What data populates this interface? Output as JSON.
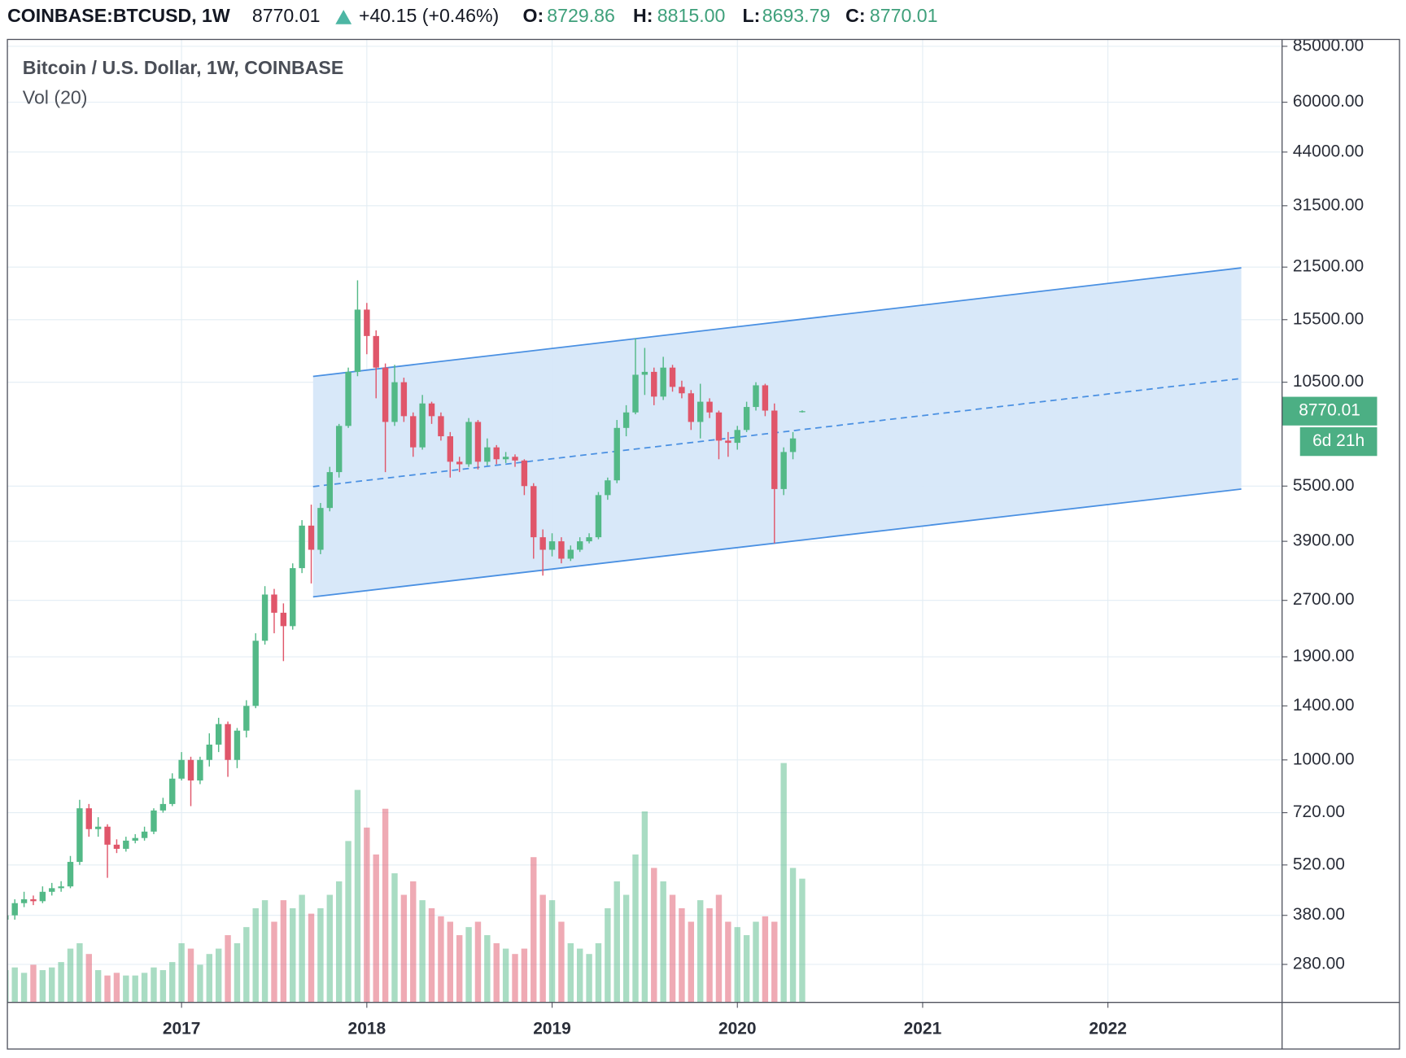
{
  "header": {
    "symbol": "COINBASE:BTCUSD, 1W",
    "price": "8770.01",
    "change": "+40.15 (+0.46%)",
    "ohlc": [
      {
        "label": "O:",
        "value": "8729.86"
      },
      {
        "label": "H:",
        "value": "8815.00"
      },
      {
        "label": "L:",
        "value": "8693.79"
      },
      {
        "label": "C:",
        "value": "8770.01"
      }
    ]
  },
  "chart_data": {
    "type": "candlestick",
    "title": "Bitcoin / U.S. Dollar, 1W, COINBASE",
    "subtitle": "Vol (20)",
    "log_scale": true,
    "grid": true,
    "up_color": "#53b987",
    "down_color": "#e0566a",
    "x": [
      2016.05,
      2016.1,
      2016.15,
      2016.2,
      2016.25,
      2016.3,
      2016.35,
      2016.4,
      2016.45,
      2016.5,
      2016.55,
      2016.6,
      2016.65,
      2016.7,
      2016.75,
      2016.8,
      2016.85,
      2016.9,
      2016.95,
      2017.0,
      2017.05,
      2017.1,
      2017.15,
      2017.2,
      2017.25,
      2017.3,
      2017.35,
      2017.4,
      2017.45,
      2017.5,
      2017.55,
      2017.6,
      2017.65,
      2017.7,
      2017.75,
      2017.8,
      2017.85,
      2017.9,
      2017.95,
      2018.0,
      2018.05,
      2018.1,
      2018.15,
      2018.2,
      2018.25,
      2018.3,
      2018.35,
      2018.4,
      2018.45,
      2018.5,
      2018.55,
      2018.6,
      2018.65,
      2018.7,
      2018.75,
      2018.8,
      2018.85,
      2018.9,
      2018.95,
      2019.0,
      2019.05,
      2019.1,
      2019.15,
      2019.2,
      2019.25,
      2019.3,
      2019.35,
      2019.4,
      2019.45,
      2019.5,
      2019.55,
      2019.6,
      2019.65,
      2019.7,
      2019.75,
      2019.8,
      2019.85,
      2019.9,
      2019.95,
      2020.0,
      2020.05,
      2020.1,
      2020.15,
      2020.2,
      2020.25,
      2020.3,
      2020.35
    ],
    "open": [
      370,
      380,
      410,
      420,
      415,
      440,
      450,
      455,
      530,
      740,
      650,
      660,
      590,
      575,
      605,
      615,
      640,
      730,
      760,
      890,
      1000,
      880,
      1000,
      1100,
      1250,
      1000,
      1200,
      1400,
      2100,
      2800,
      2500,
      2300,
      3300,
      4300,
      3700,
      4800,
      6000,
      8000,
      11200,
      16500,
      14000,
      11500,
      8200,
      10500,
      8500,
      7000,
      9200,
      8500,
      7500,
      6400,
      6300,
      8200,
      6400,
      7000,
      6500,
      6600,
      6450,
      5500,
      4000,
      3700,
      3900,
      3500,
      3700,
      3900,
      4000,
      5200,
      5700,
      7900,
      8700,
      11000,
      11200,
      9600,
      11500,
      10200,
      9800,
      8200,
      9300,
      8700,
      7300,
      7200,
      7800,
      9000,
      10300,
      8800,
      5400,
      6800,
      8729.86
    ],
    "high": [
      400,
      420,
      440,
      430,
      455,
      465,
      470,
      550,
      780,
      760,
      700,
      670,
      610,
      620,
      630,
      660,
      740,
      790,
      920,
      1050,
      1020,
      1020,
      1180,
      1300,
      1270,
      1220,
      1450,
      2200,
      2950,
      2900,
      2650,
      3400,
      4450,
      4900,
      4950,
      6200,
      8100,
      11500,
      19800,
      17200,
      14500,
      11800,
      11700,
      10800,
      8700,
      9700,
      9300,
      8700,
      7700,
      6600,
      8400,
      8300,
      7400,
      7100,
      6800,
      6700,
      6500,
      5600,
      4200,
      4100,
      4000,
      3800,
      4000,
      4100,
      5300,
      5800,
      8300,
      9100,
      13800,
      13000,
      11500,
      12300,
      11700,
      10600,
      10000,
      10400,
      9500,
      8800,
      7700,
      8000,
      9300,
      10500,
      10400,
      9200,
      7000,
      7700,
      8815.0
    ],
    "low": [
      360,
      370,
      400,
      405,
      410,
      430,
      440,
      450,
      520,
      620,
      620,
      480,
      560,
      565,
      595,
      605,
      630,
      720,
      750,
      880,
      750,
      860,
      960,
      1050,
      900,
      950,
      1150,
      1380,
      2050,
      2200,
      1850,
      2250,
      3200,
      3000,
      3600,
      4700,
      5800,
      7900,
      10900,
      12500,
      9500,
      6000,
      8000,
      8200,
      6600,
      6900,
      8100,
      7300,
      5800,
      6000,
      6200,
      6100,
      6250,
      6300,
      6350,
      6200,
      5200,
      3500,
      3150,
      3550,
      3400,
      3450,
      3650,
      3850,
      3950,
      5050,
      5600,
      7500,
      8600,
      9700,
      9100,
      9400,
      9900,
      9500,
      7800,
      7400,
      8400,
      6500,
      6600,
      6900,
      7700,
      8800,
      8500,
      3850,
      5200,
      6500,
      8693.79
    ],
    "close": [
      380,
      410,
      420,
      415,
      440,
      450,
      455,
      530,
      740,
      650,
      660,
      590,
      575,
      605,
      615,
      640,
      730,
      760,
      890,
      1000,
      880,
      1000,
      1100,
      1250,
      1000,
      1200,
      1400,
      2100,
      2800,
      2500,
      2300,
      3300,
      4300,
      3700,
      4800,
      6000,
      8000,
      11200,
      16500,
      14000,
      11500,
      8200,
      10500,
      8500,
      7000,
      9200,
      8500,
      7500,
      6400,
      6300,
      8200,
      6400,
      7000,
      6500,
      6600,
      6450,
      5500,
      4000,
      3700,
      3900,
      3500,
      3700,
      3900,
      4000,
      5200,
      5700,
      7900,
      8700,
      11000,
      11200,
      9600,
      11500,
      10200,
      9800,
      8200,
      9300,
      8700,
      7300,
      7200,
      7800,
      9000,
      10300,
      8800,
      5400,
      6800,
      7400,
      8770.01
    ],
    "volume": [
      12,
      13,
      11,
      14,
      12,
      13,
      15,
      20,
      22,
      18,
      12,
      10,
      11,
      10,
      10,
      11,
      13,
      12,
      15,
      22,
      20,
      14,
      18,
      20,
      25,
      22,
      28,
      35,
      38,
      30,
      38,
      35,
      40,
      33,
      35,
      40,
      45,
      60,
      79,
      65,
      55,
      72,
      48,
      40,
      45,
      38,
      35,
      32,
      30,
      25,
      28,
      30,
      25,
      22,
      20,
      18,
      20,
      54,
      40,
      38,
      30,
      22,
      20,
      18,
      22,
      35,
      45,
      40,
      55,
      71,
      50,
      45,
      40,
      35,
      30,
      38,
      35,
      40,
      30,
      28,
      25,
      30,
      32,
      30,
      89,
      50,
      46
    ],
    "xlim": [
      2016.06,
      2022.94
    ],
    "xticks": [
      2017,
      2018,
      2019,
      2020,
      2021,
      2022
    ],
    "ylim": [
      221,
      88700
    ],
    "yticks": [
      {
        "value": 85000,
        "label": "85000.00"
      },
      {
        "value": 60000,
        "label": "60000.00"
      },
      {
        "value": 44000,
        "label": "44000.00"
      },
      {
        "value": 31500,
        "label": "31500.00"
      },
      {
        "value": 21500,
        "label": "21500.00"
      },
      {
        "value": 15500,
        "label": "15500.00"
      },
      {
        "value": 10500,
        "label": "10500.00"
      },
      {
        "value": 5500,
        "label": "5500.00"
      },
      {
        "value": 3900,
        "label": "3900.00"
      },
      {
        "value": 2700,
        "label": "2700.00"
      },
      {
        "value": 1900,
        "label": "1900.00"
      },
      {
        "value": 1400,
        "label": "1400.00"
      },
      {
        "value": 1000,
        "label": "1000.00"
      },
      {
        "value": 720,
        "label": "720.00"
      },
      {
        "value": 520,
        "label": "520.00"
      },
      {
        "value": 380,
        "label": "380.00"
      },
      {
        "value": 280,
        "label": "280.00"
      }
    ],
    "y2lim": [
      0,
      100
    ],
    "channel": {
      "x": [
        2017.71,
        2022.72
      ],
      "upper": [
        10890,
        21400
      ],
      "middle": [
        5482,
        10750
      ],
      "lower": [
        2760,
        5400
      ],
      "color": "#4a90e2",
      "fill": "#d6e7f9"
    },
    "price_label": "8770.01",
    "countdown": "6d 21h",
    "label_color": "#4caf84"
  }
}
